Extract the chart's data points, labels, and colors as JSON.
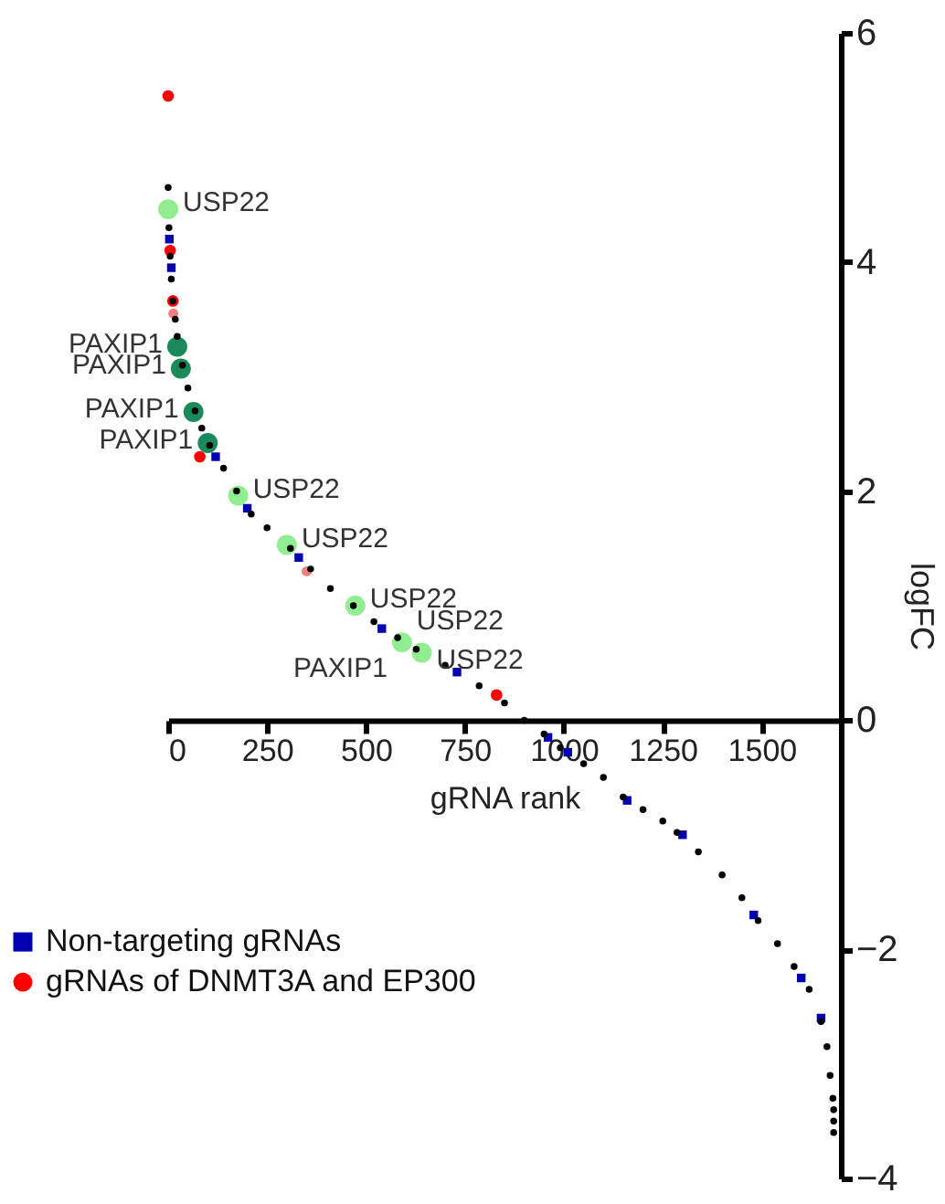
{
  "chart_data": {
    "type": "scatter",
    "xlabel": "gRNA rank",
    "ylabel": "logFC",
    "xlim": [
      0,
      1700
    ],
    "xticks": [
      0,
      250,
      500,
      750,
      1000,
      1250,
      1500
    ],
    "ylim": [
      -4,
      6
    ],
    "yticks": [
      -4,
      -2,
      0,
      2,
      4,
      6
    ],
    "grid": false,
    "legend": "bottom left",
    "series": [
      {
        "name": "Non-targeting gRNAs",
        "color": "#0000b0",
        "marker": "square",
        "x": [
          3,
          8,
          120,
          200,
          330,
          540,
          730,
          960,
          1010,
          1160,
          1300,
          1480,
          1600,
          1650
        ],
        "values": [
          4.2,
          3.95,
          2.3,
          1.85,
          1.42,
          0.8,
          0.42,
          -0.15,
          -0.28,
          -0.7,
          -1.0,
          -1.7,
          -2.25,
          -2.6
        ]
      },
      {
        "color": "#f08080",
        "x": [
          13,
          350
        ],
        "values": [
          3.55,
          1.3
        ]
      },
      {
        "name": "gRNAs of DNMT3A and EP300",
        "color": "#ff0000",
        "marker": "circle",
        "x": [
          0,
          5,
          12,
          80,
          830
        ],
        "values": [
          5.45,
          4.1,
          3.66,
          2.3,
          0.22
        ]
      },
      {
        "color": "#90ee90",
        "x": [
          0,
          177,
          300,
          473,
          591,
          641
        ],
        "values": [
          4.46,
          1.96,
          1.53,
          1.0,
          0.68,
          0.59
        ]
      },
      {
        "color": "#1a8a5a",
        "x": [
          23,
          32,
          64,
          100
        ],
        "values": [
          3.26,
          3.07,
          2.69,
          2.42
        ]
      },
      {
        "color": "#000000",
        "x": [
          0,
          2,
          5,
          8,
          12,
          18,
          23,
          36,
          50,
          68,
          85,
          105,
          140,
          173,
          210,
          250,
          309,
          360,
          410,
          468,
          520,
          580,
          627,
          700,
          786,
          850,
          900,
          950,
          991,
          1050,
          1100,
          1150,
          1200,
          1250,
          1286,
          1340,
          1400,
          1450,
          1491,
          1540,
          1582,
          1620,
          1650,
          1665,
          1673,
          1680,
          1682,
          1682,
          1682
        ],
        "values": [
          4.65,
          4.3,
          4.05,
          3.85,
          3.66,
          3.5,
          3.35,
          3.1,
          2.9,
          2.7,
          2.55,
          2.4,
          2.2,
          2.0,
          1.8,
          1.68,
          1.5,
          1.32,
          1.15,
          1.0,
          0.86,
          0.72,
          0.62,
          0.48,
          0.3,
          0.15,
          0.0,
          -0.12,
          -0.24,
          -0.38,
          -0.5,
          -0.67,
          -0.78,
          -0.88,
          -0.98,
          -1.15,
          -1.35,
          -1.55,
          -1.75,
          -1.95,
          -2.15,
          -2.35,
          -2.63,
          -2.85,
          -3.1,
          -3.3,
          -3.4,
          -3.5,
          -3.6
        ]
      }
    ],
    "annotations": [
      {
        "text": "USP22",
        "x": 0,
        "y": 4.46
      },
      {
        "text": "USP22",
        "x": 177,
        "y": 1.96
      },
      {
        "text": "USP22",
        "x": 300,
        "y": 1.53
      },
      {
        "text": "USP22",
        "x": 473,
        "y": 1.0
      },
      {
        "text": "USP22",
        "x": 591,
        "y": 0.68
      },
      {
        "text": "USP22",
        "x": 641,
        "y": 0.59
      },
      {
        "text": "PAXIP1",
        "x": 23,
        "y": 3.26
      },
      {
        "text": "PAXIP1",
        "x": 32,
        "y": 3.07
      },
      {
        "text": "PAXIP1",
        "x": 64,
        "y": 2.69
      },
      {
        "text": "PAXIP1",
        "x": 100,
        "y": 2.42
      },
      {
        "text": "PAXIP1",
        "x": 591,
        "y": 0.68
      }
    ]
  }
}
